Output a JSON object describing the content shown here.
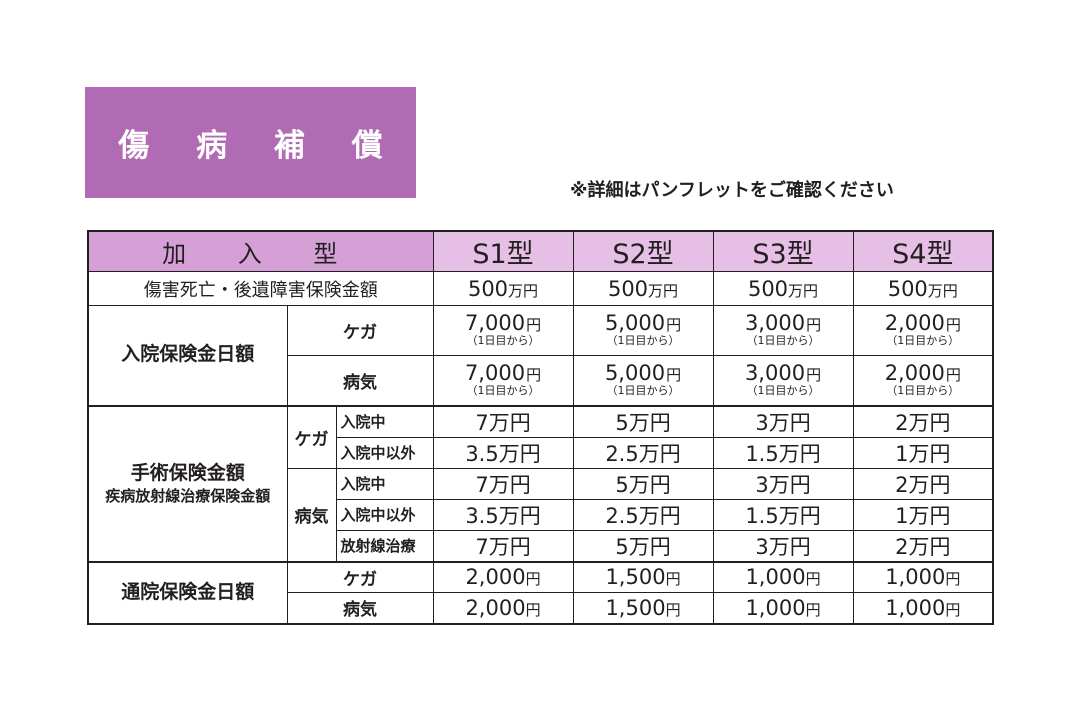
{
  "title": "傷 病 補 償",
  "note": "※詳細はパンフレットをご確認ください",
  "header": {
    "kanyu_label": "加 入 型",
    "plans": [
      "S1型",
      "S2型",
      "S3型",
      "S4型"
    ]
  },
  "rows": {
    "death": {
      "label": "傷害死亡・後遺障害保険金額",
      "values": [
        "500",
        "500",
        "500",
        "500"
      ],
      "unit": "万円"
    },
    "hospital": {
      "label": "入院保険金日額",
      "injury_label": "ケガ",
      "illness_label": "病気",
      "injury_values": [
        "7,000",
        "5,000",
        "3,000",
        "2,000"
      ],
      "illness_values": [
        "7,000",
        "5,000",
        "3,000",
        "2,000"
      ],
      "unit": "円",
      "note": "（1日目から）"
    },
    "surgery": {
      "label_main": "手術保険金額",
      "label_sub": "疾病放射線治療保険金額",
      "injury_label": "ケガ",
      "illness_label": "病気",
      "injury_in_label": "入院中",
      "injury_out_label": "入院中以外",
      "illness_in_label": "入院中",
      "illness_out_label": "入院中以外",
      "illness_rad_label": "放射線治療",
      "injury_in": [
        "7",
        "5",
        "3",
        "2"
      ],
      "injury_out": [
        "3.5",
        "2.5",
        "1.5",
        "1"
      ],
      "illness_in": [
        "7",
        "5",
        "3",
        "2"
      ],
      "illness_out": [
        "3.5",
        "2.5",
        "1.5",
        "1"
      ],
      "illness_rad": [
        "7",
        "5",
        "3",
        "2"
      ],
      "unit": "万円"
    },
    "outpatient": {
      "label": "通院保険金日額",
      "injury_label": "ケガ",
      "illness_label": "病気",
      "injury_values": [
        "2,000",
        "1,500",
        "1,000",
        "1,000"
      ],
      "illness_values": [
        "2,000",
        "1,500",
        "1,000",
        "1,000"
      ],
      "unit": "円"
    }
  },
  "colors": {
    "title_bg": "#b16bb4",
    "header_bg": "#e6bfe6",
    "header_left_bg": "#d4a0d6"
  }
}
